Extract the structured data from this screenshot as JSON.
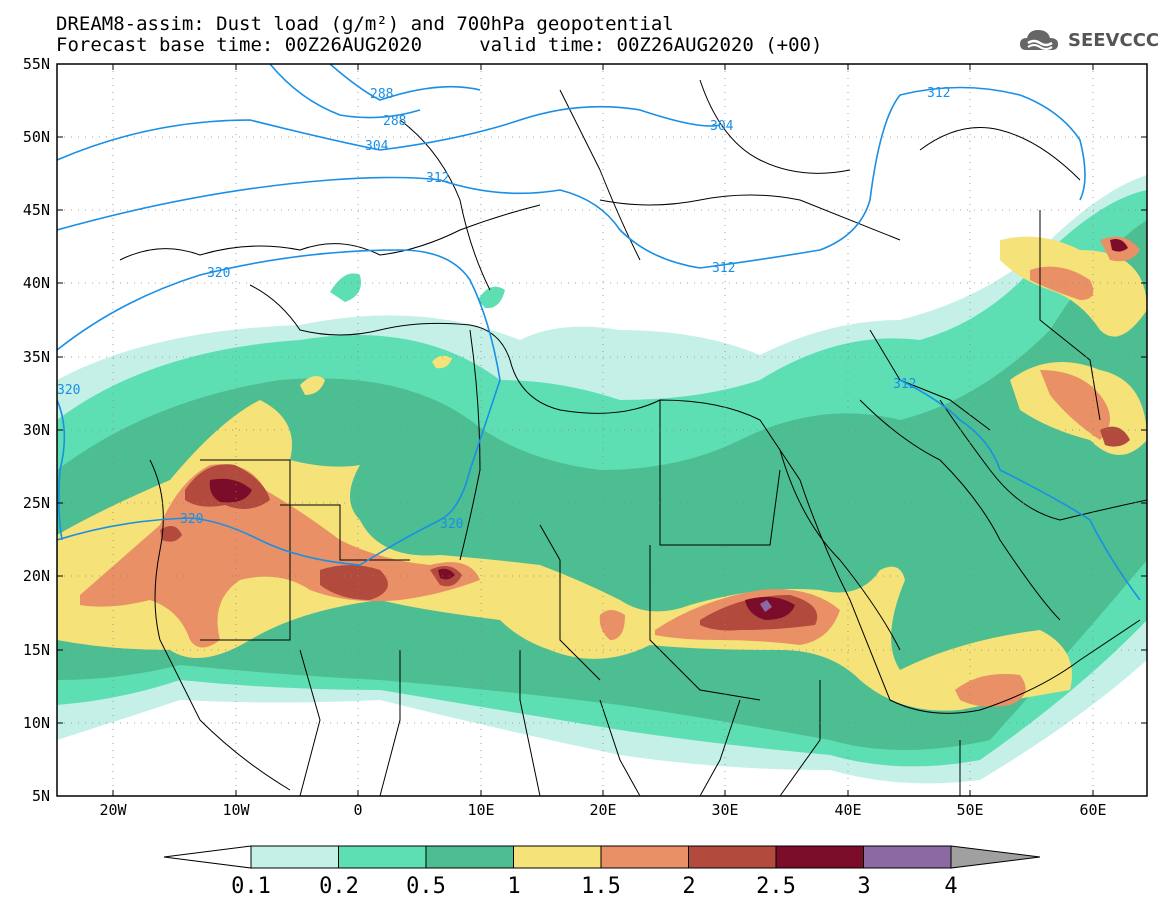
{
  "header": {
    "line1": "DREAM8-assim: Dust load (g/m²) and 700hPa geopotential",
    "line2": "Forecast base time: 00Z26AUG2020     valid time: 00Z26AUG2020 (+00)"
  },
  "logo": {
    "text": "SEEVCCC"
  },
  "map": {
    "lat_labels": [
      "55N",
      "50N",
      "45N",
      "40N",
      "35N",
      "30N",
      "25N",
      "20N",
      "15N",
      "10N",
      "5N"
    ],
    "lon_labels": [
      "20W",
      "10W",
      "0",
      "10E",
      "20E",
      "30E",
      "40E",
      "50E",
      "60E"
    ],
    "contour_labels": [
      "288",
      "288",
      "304",
      "304",
      "312",
      "312",
      "312",
      "312",
      "320",
      "320",
      "320",
      "320"
    ]
  },
  "colorbar": {
    "labels": [
      "0.1",
      "0.2",
      "0.5",
      "1",
      "1.5",
      "2",
      "2.5",
      "3",
      "4"
    ],
    "colors": [
      "#ffffff",
      "#c4f0e8",
      "#5ddfb3",
      "#4dbd92",
      "#f5e278",
      "#e99066",
      "#b24b3d",
      "#7c0d2a",
      "#8a6aa1",
      "#a0a0a0"
    ]
  }
}
